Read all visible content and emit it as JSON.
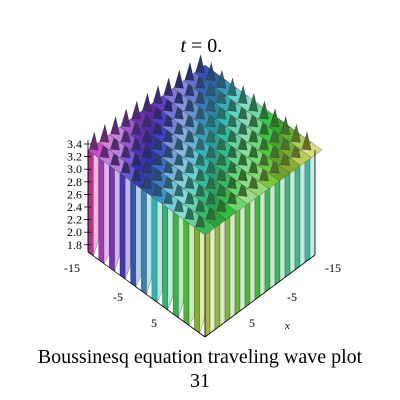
{
  "title": {
    "variable": "t",
    "rest": "= 0."
  },
  "z_axis": {
    "ticks": [
      "3.4",
      "3.2",
      "3.0",
      "2.8",
      "2.6",
      "2.4",
      "2.2",
      "2.0",
      "1.8"
    ]
  },
  "left_axis": {
    "ticks": [
      "-15",
      "-5",
      "5"
    ]
  },
  "x_axis": {
    "label": "x",
    "ticks": [
      "-15",
      "-5",
      "5"
    ]
  },
  "caption": [
    "Boussinesq equation  traveling wave plot",
    "31"
  ]
}
